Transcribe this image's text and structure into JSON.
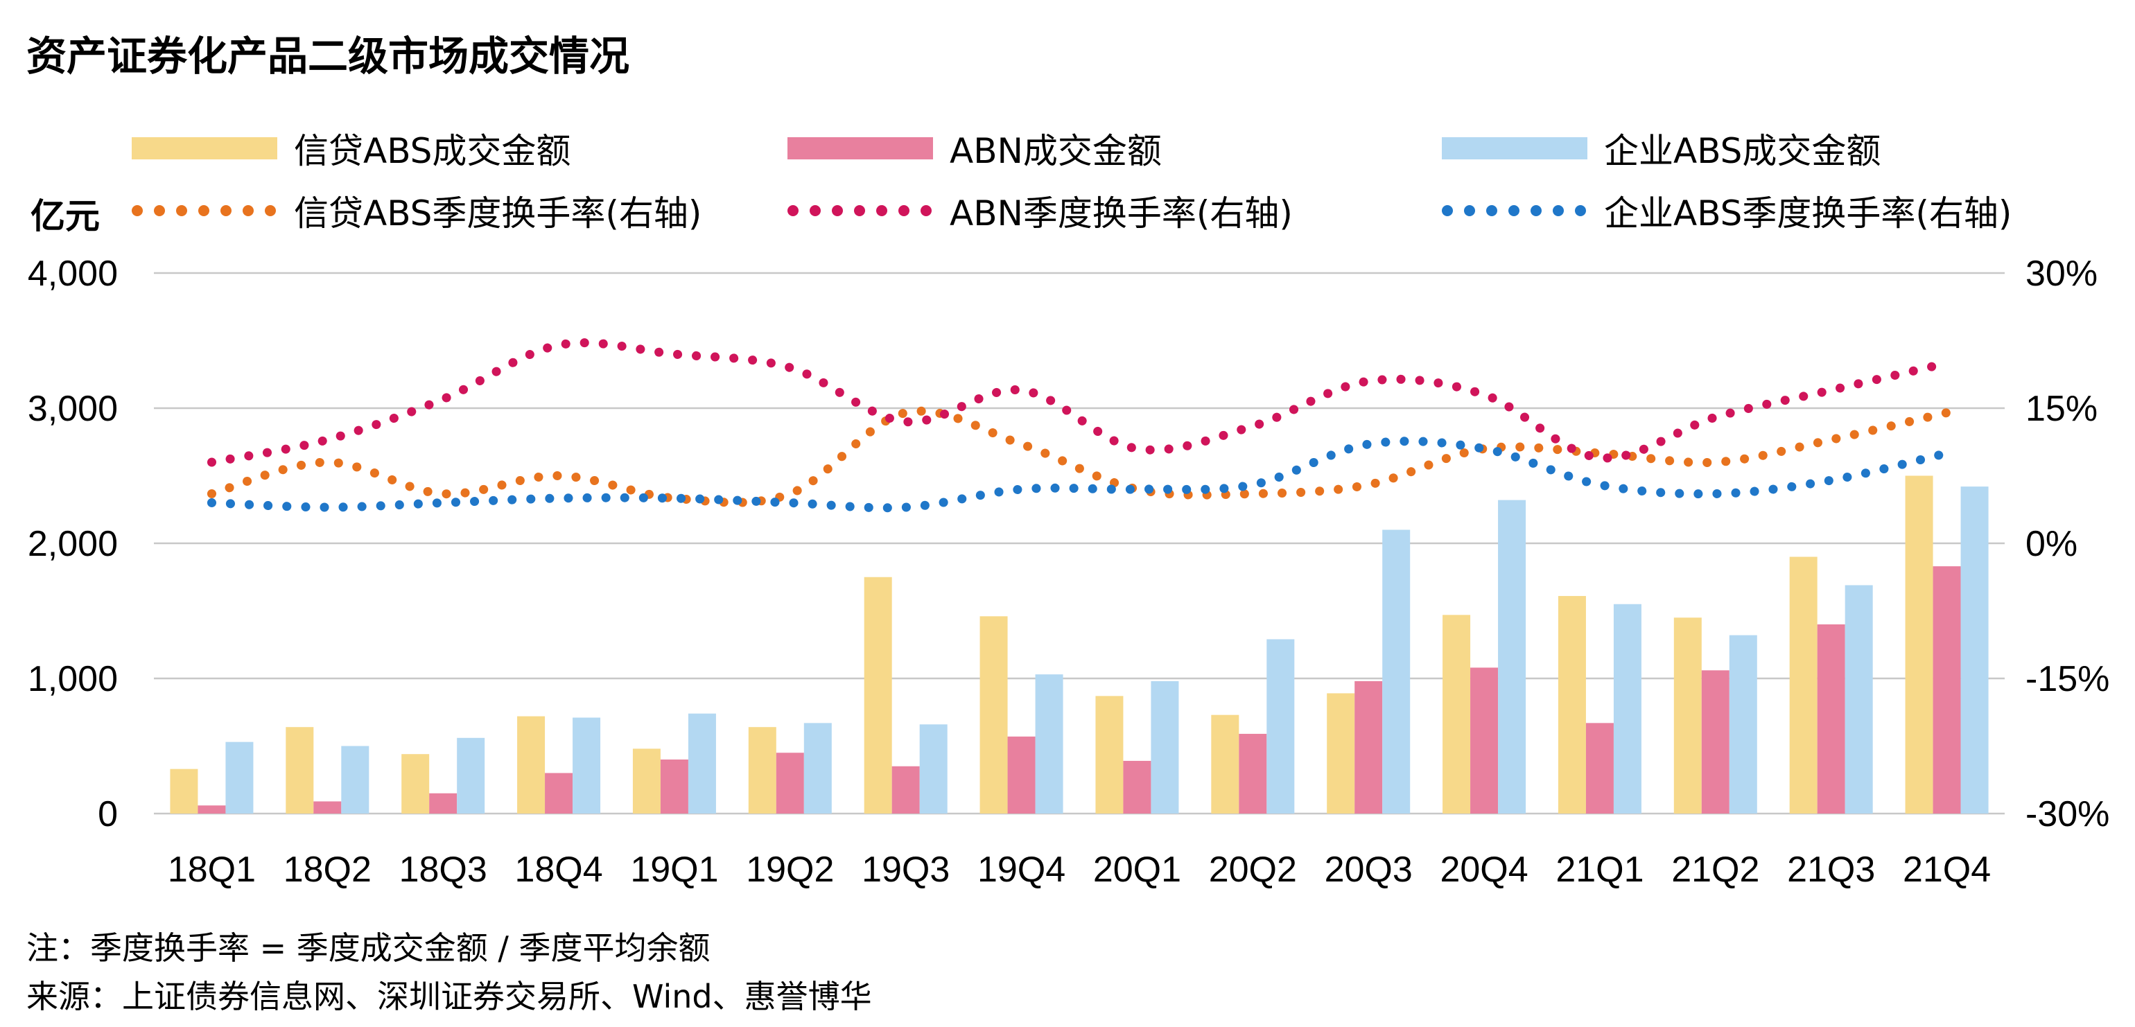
{
  "title": "资产证券化产品二级市场成交情况",
  "unit_label": "亿元",
  "legend": [
    {
      "label": "信贷ABS成交金额",
      "kind": "bar",
      "color": "#F7D98A"
    },
    {
      "label": "ABN成交金额",
      "kind": "bar",
      "color": "#E8809E"
    },
    {
      "label": "企业ABS成交金额",
      "kind": "bar",
      "color": "#B3D8F2"
    },
    {
      "label": "信贷ABS季度换手率(右轴)",
      "kind": "dotted-line",
      "color": "#E8731E"
    },
    {
      "label": "ABN季度换手率(右轴)",
      "kind": "dotted-line",
      "color": "#D0145A"
    },
    {
      "label": "企业ABS季度换手率(右轴)",
      "kind": "dotted-line",
      "color": "#1F77C9"
    }
  ],
  "note": "注：季度换手率 = 季度成交金额 / 季度平均余额",
  "source": "来源：上证债券信息网、深圳证券交易所、Wind、惠誉博华",
  "chart_data": {
    "type": "bar",
    "categories": [
      "18Q1",
      "18Q2",
      "18Q3",
      "18Q4",
      "19Q1",
      "19Q2",
      "19Q3",
      "19Q4",
      "20Q1",
      "20Q2",
      "20Q3",
      "20Q4",
      "21Q1",
      "21Q2",
      "21Q3",
      "21Q4"
    ],
    "y_left": {
      "min": 0,
      "max": 4000,
      "ticks": [
        "0",
        "1,000",
        "2,000",
        "3,000",
        "4,000"
      ],
      "tick_values": [
        0,
        1000,
        2000,
        3000,
        4000
      ]
    },
    "y_right": {
      "min": -30,
      "max": 30,
      "ticks": [
        "-30%",
        "-15%",
        "0%",
        "15%",
        "30%"
      ],
      "tick_values": [
        -30,
        -15,
        0,
        15,
        30
      ]
    },
    "grid": true,
    "legend_position": "top",
    "bar_series": [
      {
        "name": "信贷ABS成交金额",
        "color": "#F7D98A",
        "values": [
          330,
          640,
          440,
          720,
          480,
          640,
          1750,
          1460,
          870,
          730,
          890,
          1470,
          1610,
          1450,
          1900,
          2500
        ]
      },
      {
        "name": "ABN成交金额",
        "color": "#E8809E",
        "values": [
          60,
          90,
          150,
          300,
          400,
          450,
          350,
          570,
          390,
          590,
          980,
          1080,
          670,
          1060,
          1400,
          1830
        ]
      },
      {
        "name": "企业ABS成交金额",
        "color": "#B3D8F2",
        "values": [
          530,
          500,
          560,
          710,
          740,
          670,
          660,
          1030,
          980,
          1290,
          2100,
          2320,
          1550,
          1320,
          1690,
          2420
        ]
      }
    ],
    "line_series": [
      {
        "name": "信贷ABS季度换手率(右轴)",
        "color": "#E8731E",
        "axis": "right",
        "values": [
          5.5,
          9.0,
          5.5,
          7.5,
          5.0,
          5.5,
          14.5,
          11.0,
          6.0,
          5.5,
          6.5,
          10.5,
          10.0,
          9.0,
          11.5,
          14.5
        ]
      },
      {
        "name": "ABN季度换手率(右轴)",
        "color": "#D0145A",
        "axis": "right",
        "values": [
          9.0,
          11.5,
          16.0,
          22.0,
          21.0,
          19.5,
          13.5,
          17.0,
          10.5,
          13.0,
          18.0,
          16.5,
          9.5,
          14.0,
          17.0,
          20.0
        ]
      },
      {
        "name": "企业ABS季度换手率(右轴)",
        "color": "#1F77C9",
        "axis": "right",
        "values": [
          4.5,
          4.0,
          4.5,
          5.0,
          5.0,
          4.5,
          4.0,
          6.0,
          6.0,
          6.5,
          11.0,
          10.5,
          6.5,
          5.5,
          7.0,
          10.0
        ]
      }
    ]
  }
}
